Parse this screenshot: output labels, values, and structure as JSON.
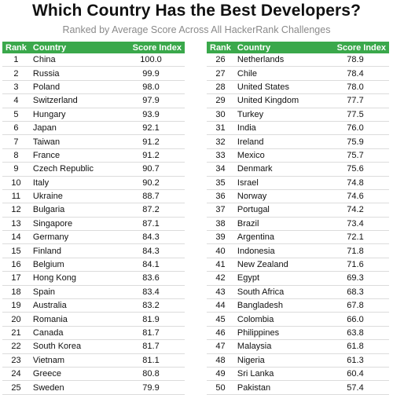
{
  "chart_data": {
    "type": "table",
    "title": "Which Country Has the Best Developers?",
    "subtitle": "Ranked by Average Score Across All HackerRank Challenges",
    "columns": [
      "Rank",
      "Country",
      "Score Index"
    ],
    "rows": [
      {
        "rank": "1",
        "country": "China",
        "score": "100.0"
      },
      {
        "rank": "2",
        "country": "Russia",
        "score": "99.9"
      },
      {
        "rank": "3",
        "country": "Poland",
        "score": "98.0"
      },
      {
        "rank": "4",
        "country": "Switzerland",
        "score": "97.9"
      },
      {
        "rank": "5",
        "country": "Hungary",
        "score": "93.9"
      },
      {
        "rank": "6",
        "country": "Japan",
        "score": "92.1"
      },
      {
        "rank": "7",
        "country": "Taiwan",
        "score": "91.2"
      },
      {
        "rank": "8",
        "country": "France",
        "score": "91.2"
      },
      {
        "rank": "9",
        "country": "Czech Republic",
        "score": "90.7"
      },
      {
        "rank": "10",
        "country": "Italy",
        "score": "90.2"
      },
      {
        "rank": "11",
        "country": "Ukraine",
        "score": "88.7"
      },
      {
        "rank": "12",
        "country": "Bulgaria",
        "score": "87.2"
      },
      {
        "rank": "13",
        "country": "Singapore",
        "score": "87.1"
      },
      {
        "rank": "14",
        "country": "Germany",
        "score": "84.3"
      },
      {
        "rank": "15",
        "country": "Finland",
        "score": "84.3"
      },
      {
        "rank": "16",
        "country": "Belgium",
        "score": "84.1"
      },
      {
        "rank": "17",
        "country": "Hong Kong",
        "score": "83.6"
      },
      {
        "rank": "18",
        "country": "Spain",
        "score": "83.4"
      },
      {
        "rank": "19",
        "country": "Australia",
        "score": "83.2"
      },
      {
        "rank": "20",
        "country": "Romania",
        "score": "81.9"
      },
      {
        "rank": "21",
        "country": "Canada",
        "score": "81.7"
      },
      {
        "rank": "22",
        "country": "South Korea",
        "score": "81.7"
      },
      {
        "rank": "23",
        "country": "Vietnam",
        "score": "81.1"
      },
      {
        "rank": "24",
        "country": "Greece",
        "score": "80.8"
      },
      {
        "rank": "25",
        "country": "Sweden",
        "score": "79.9"
      },
      {
        "rank": "26",
        "country": "Netherlands",
        "score": "78.9"
      },
      {
        "rank": "27",
        "country": "Chile",
        "score": "78.4"
      },
      {
        "rank": "28",
        "country": "United States",
        "score": "78.0"
      },
      {
        "rank": "29",
        "country": "United Kingdom",
        "score": "77.7"
      },
      {
        "rank": "30",
        "country": "Turkey",
        "score": "77.5"
      },
      {
        "rank": "31",
        "country": "India",
        "score": "76.0"
      },
      {
        "rank": "32",
        "country": "Ireland",
        "score": "75.9"
      },
      {
        "rank": "33",
        "country": "Mexico",
        "score": "75.7"
      },
      {
        "rank": "34",
        "country": "Denmark",
        "score": "75.6"
      },
      {
        "rank": "35",
        "country": "Israel",
        "score": "74.8"
      },
      {
        "rank": "36",
        "country": "Norway",
        "score": "74.6"
      },
      {
        "rank": "37",
        "country": "Portugal",
        "score": "74.2"
      },
      {
        "rank": "38",
        "country": "Brazil",
        "score": "73.4"
      },
      {
        "rank": "39",
        "country": "Argentina",
        "score": "72.1"
      },
      {
        "rank": "40",
        "country": "Indonesia",
        "score": "71.8"
      },
      {
        "rank": "41",
        "country": "New Zealand",
        "score": "71.6"
      },
      {
        "rank": "42",
        "country": "Egypt",
        "score": "69.3"
      },
      {
        "rank": "43",
        "country": "South Africa",
        "score": "68.3"
      },
      {
        "rank": "44",
        "country": "Bangladesh",
        "score": "67.8"
      },
      {
        "rank": "45",
        "country": "Colombia",
        "score": "66.0"
      },
      {
        "rank": "46",
        "country": "Philippines",
        "score": "63.8"
      },
      {
        "rank": "47",
        "country": "Malaysia",
        "score": "61.8"
      },
      {
        "rank": "48",
        "country": "Nigeria",
        "score": "61.3"
      },
      {
        "rank": "49",
        "country": "Sri Lanka",
        "score": "60.4"
      },
      {
        "rank": "50",
        "country": "Pakistan",
        "score": "57.4"
      }
    ],
    "header_color": "#3aa84b"
  }
}
